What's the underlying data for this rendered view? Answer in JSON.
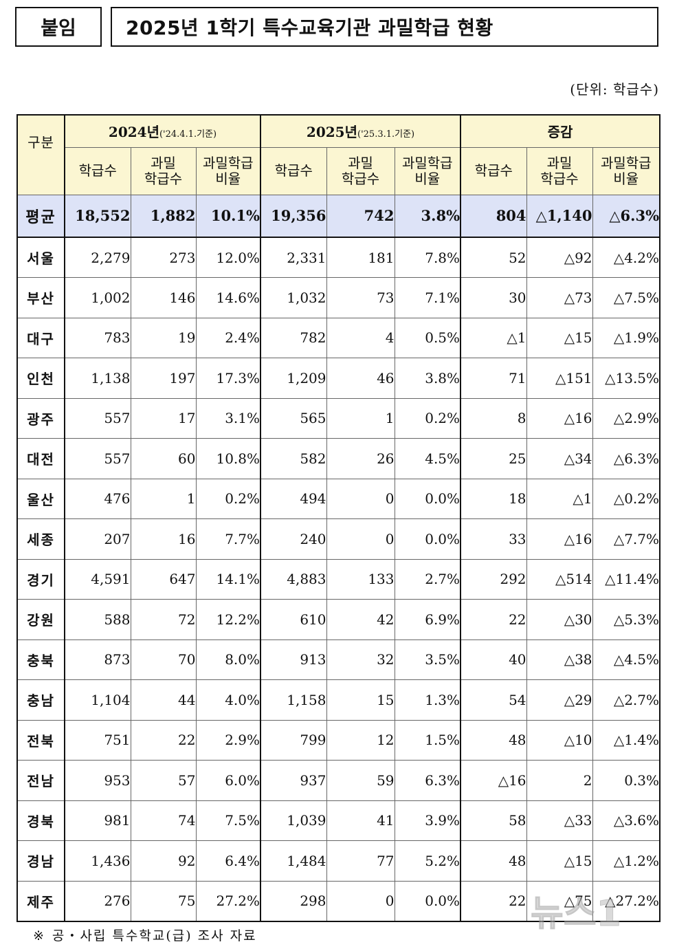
{
  "tag": "붙임",
  "title": "2025년 1학기 특수교육기관 과밀학급 현황",
  "unit": "(단위: 학급수)",
  "header": {
    "gubun": "구분",
    "groups": [
      {
        "year": "2024년",
        "basis": "('24.4.1.기준)"
      },
      {
        "year": "2025년",
        "basis": "('25.3.1.기준)"
      },
      {
        "year": "증감",
        "basis": ""
      }
    ],
    "cols": [
      {
        "l1": "학급수",
        "l2": ""
      },
      {
        "l1": "과밀",
        "l2": "학급수"
      },
      {
        "l1": "과밀학급",
        "l2": "비율"
      }
    ]
  },
  "average": {
    "name": "평균",
    "values": [
      "18,552",
      "1,882",
      "10.1%",
      "19,356",
      "742",
      "3.8%",
      "804",
      "△1,140",
      "△6.3%"
    ]
  },
  "rows": [
    {
      "name": "서울",
      "values": [
        "2,279",
        "273",
        "12.0%",
        "2,331",
        "181",
        "7.8%",
        "52",
        "△92",
        "△4.2%"
      ]
    },
    {
      "name": "부산",
      "values": [
        "1,002",
        "146",
        "14.6%",
        "1,032",
        "73",
        "7.1%",
        "30",
        "△73",
        "△7.5%"
      ]
    },
    {
      "name": "대구",
      "values": [
        "783",
        "19",
        "2.4%",
        "782",
        "4",
        "0.5%",
        "△1",
        "△15",
        "△1.9%"
      ]
    },
    {
      "name": "인천",
      "values": [
        "1,138",
        "197",
        "17.3%",
        "1,209",
        "46",
        "3.8%",
        "71",
        "△151",
        "△13.5%"
      ]
    },
    {
      "name": "광주",
      "values": [
        "557",
        "17",
        "3.1%",
        "565",
        "1",
        "0.2%",
        "8",
        "△16",
        "△2.9%"
      ]
    },
    {
      "name": "대전",
      "values": [
        "557",
        "60",
        "10.8%",
        "582",
        "26",
        "4.5%",
        "25",
        "△34",
        "△6.3%"
      ]
    },
    {
      "name": "울산",
      "values": [
        "476",
        "1",
        "0.2%",
        "494",
        "0",
        "0.0%",
        "18",
        "△1",
        "△0.2%"
      ]
    },
    {
      "name": "세종",
      "values": [
        "207",
        "16",
        "7.7%",
        "240",
        "0",
        "0.0%",
        "33",
        "△16",
        "△7.7%"
      ]
    },
    {
      "name": "경기",
      "values": [
        "4,591",
        "647",
        "14.1%",
        "4,883",
        "133",
        "2.7%",
        "292",
        "△514",
        "△11.4%"
      ]
    },
    {
      "name": "강원",
      "values": [
        "588",
        "72",
        "12.2%",
        "610",
        "42",
        "6.9%",
        "22",
        "△30",
        "△5.3%"
      ]
    },
    {
      "name": "충북",
      "values": [
        "873",
        "70",
        "8.0%",
        "913",
        "32",
        "3.5%",
        "40",
        "△38",
        "△4.5%"
      ]
    },
    {
      "name": "충남",
      "values": [
        "1,104",
        "44",
        "4.0%",
        "1,158",
        "15",
        "1.3%",
        "54",
        "△29",
        "△2.7%"
      ]
    },
    {
      "name": "전북",
      "values": [
        "751",
        "22",
        "2.9%",
        "799",
        "12",
        "1.5%",
        "48",
        "△10",
        "△1.4%"
      ]
    },
    {
      "name": "전남",
      "values": [
        "953",
        "57",
        "6.0%",
        "937",
        "59",
        "6.3%",
        "△16",
        "2",
        "0.3%"
      ]
    },
    {
      "name": "경북",
      "values": [
        "981",
        "74",
        "7.5%",
        "1,039",
        "41",
        "3.9%",
        "58",
        "△33",
        "△3.6%"
      ]
    },
    {
      "name": "경남",
      "values": [
        "1,436",
        "92",
        "6.4%",
        "1,484",
        "77",
        "5.2%",
        "48",
        "△15",
        "△1.2%"
      ]
    },
    {
      "name": "제주",
      "values": [
        "276",
        "75",
        "27.2%",
        "298",
        "0",
        "0.0%",
        "22",
        "△75",
        "△27.2%"
      ]
    }
  ],
  "note": {
    "symbol": "※",
    "text": "공・사립 특수학교(급) 조사 자료"
  },
  "watermark": {
    "text": "뉴스1"
  }
}
